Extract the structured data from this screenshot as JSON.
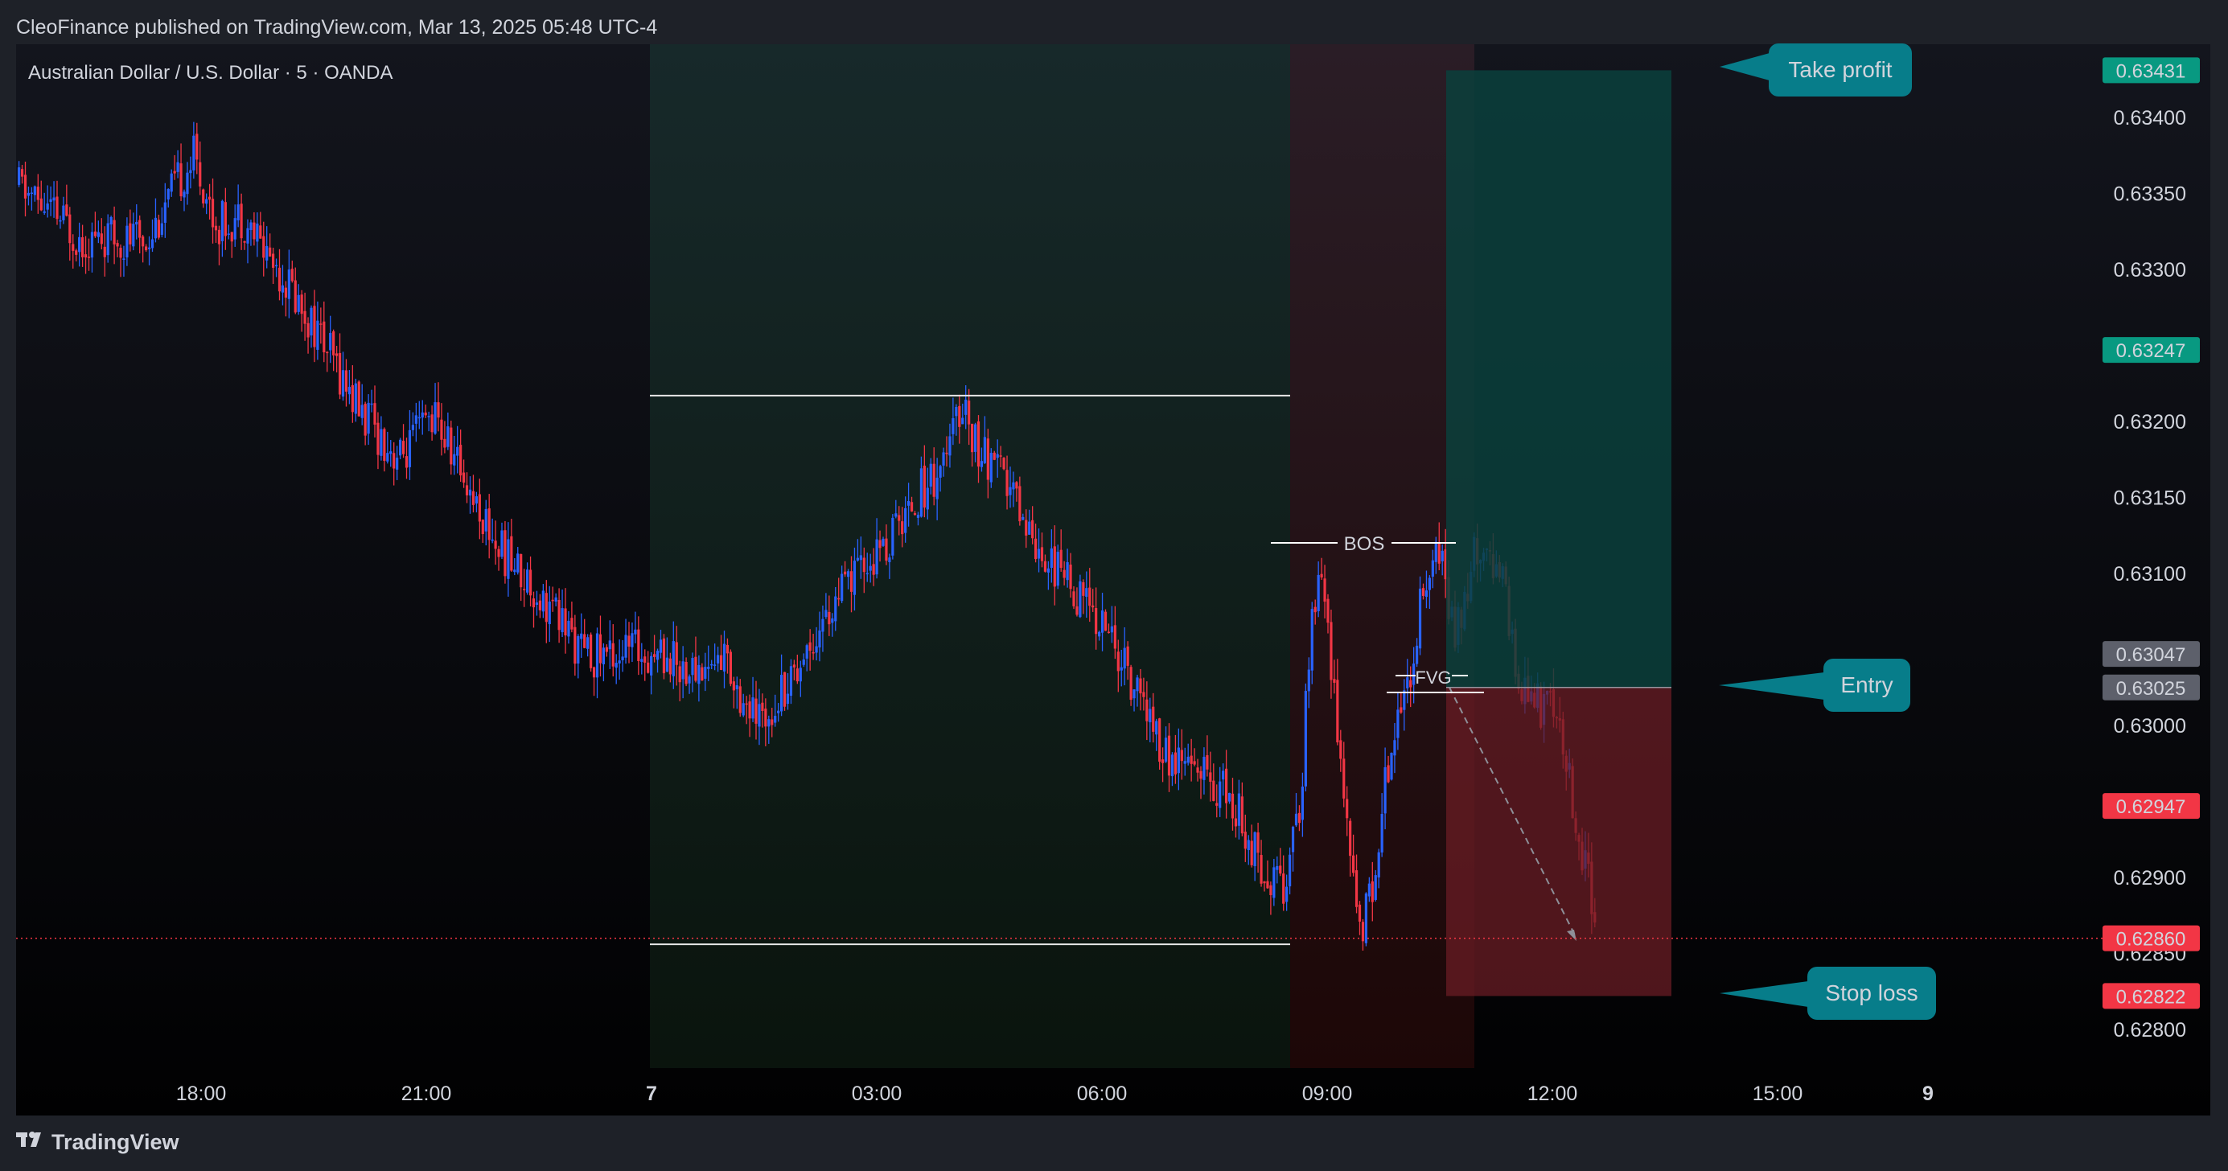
{
  "header": {
    "published_text": "CleoFinance published on TradingView.com, Mar 13, 2025 05:48 UTC-4"
  },
  "footer": {
    "logo_text": "TradingView"
  },
  "colors": {
    "background": "#1e2128",
    "panel": "#0f1118",
    "bull": "#2962ff",
    "bear": "#f23645",
    "profit_zone": "#0a3f3c",
    "loss_zone": "#6a1c24",
    "callout": "#077d8a",
    "label_green": "#089981",
    "label_red": "#f23645",
    "label_gray": "#5d606b"
  },
  "chart_data": {
    "type": "candlestick",
    "symbol_label": "Australian Dollar / U.S. Dollar · 5 · OANDA",
    "y_axis": {
      "ticks": [
        "0.63400",
        "0.63350",
        "0.63300",
        "0.63250",
        "0.63200",
        "0.63150",
        "0.63100",
        "0.63050",
        "0.63000",
        "0.62950",
        "0.62900",
        "0.62850",
        "0.62800"
      ],
      "range": [
        0.6277,
        0.6345
      ]
    },
    "x_axis": {
      "ticks": [
        {
          "label": "18:00",
          "bold": false
        },
        {
          "label": "21:00",
          "bold": false
        },
        {
          "label": "7",
          "bold": true
        },
        {
          "label": "03:00",
          "bold": false
        },
        {
          "label": "06:00",
          "bold": false
        },
        {
          "label": "09:00",
          "bold": false
        },
        {
          "label": "12:00",
          "bold": false
        },
        {
          "label": "15:00",
          "bold": false
        },
        {
          "label": "9",
          "bold": true
        }
      ]
    },
    "price_labels": [
      {
        "text": "0.63431",
        "color": "green"
      },
      {
        "text": "0.63247",
        "color": "green"
      },
      {
        "text": "0.63047",
        "color": "gray"
      },
      {
        "text": "0.63025",
        "color": "gray"
      },
      {
        "text": "0.62947",
        "color": "red"
      },
      {
        "text": "0.62860",
        "color": "red"
      },
      {
        "text": "0.62822",
        "color": "red"
      }
    ],
    "annotations": {
      "take_profit": "Take profit",
      "entry": "Entry",
      "stop_loss": "Stop loss",
      "bos": "BOS",
      "fvg": "FVG"
    },
    "levels": {
      "take_profit": 0.63431,
      "entry": 0.63025,
      "stop_loss": 0.62822,
      "last_price": 0.6286,
      "range_high": 0.63217,
      "range_low": 0.62856
    },
    "path": [
      [
        0,
        0.63355
      ],
      [
        20,
        0.6332
      ],
      [
        40,
        0.6332
      ],
      [
        55,
        0.63375
      ],
      [
        62,
        0.6333
      ],
      [
        70,
        0.63335
      ],
      [
        82,
        0.633
      ],
      [
        95,
        0.63255
      ],
      [
        108,
        0.63205
      ],
      [
        120,
        0.63175
      ],
      [
        130,
        0.63205
      ],
      [
        140,
        0.63165
      ],
      [
        150,
        0.6312
      ],
      [
        160,
        0.63095
      ],
      [
        172,
        0.63065
      ],
      [
        178,
        0.63045
      ],
      [
        184,
        0.63048
      ],
      [
        193,
        0.6305
      ],
      [
        203,
        0.63048
      ],
      [
        212,
        0.63035
      ],
      [
        222,
        0.63045
      ],
      [
        232,
        0.63
      ],
      [
        242,
        0.6303
      ],
      [
        252,
        0.63065
      ],
      [
        262,
        0.63095
      ],
      [
        272,
        0.63115
      ],
      [
        282,
        0.6315
      ],
      [
        292,
        0.63175
      ],
      [
        297,
        0.63215
      ],
      [
        302,
        0.6318
      ],
      [
        312,
        0.63155
      ],
      [
        322,
        0.63115
      ],
      [
        332,
        0.6309
      ],
      [
        342,
        0.63065
      ],
      [
        352,
        0.6302
      ],
      [
        362,
        0.62975
      ],
      [
        372,
        0.6297
      ],
      [
        382,
        0.6295
      ],
      [
        392,
        0.62905
      ],
      [
        398,
        0.62895
      ],
      [
        403,
        0.62935
      ],
      [
        406,
        0.6305
      ],
      [
        410,
        0.631
      ],
      [
        414,
        0.63025
      ],
      [
        418,
        0.6293
      ],
      [
        422,
        0.62865
      ],
      [
        427,
        0.62905
      ],
      [
        432,
        0.62995
      ],
      [
        437,
        0.63025
      ],
      [
        442,
        0.63095
      ],
      [
        447,
        0.63115
      ],
      [
        452,
        0.63055
      ],
      [
        457,
        0.63105
      ],
      [
        462,
        0.63125
      ],
      [
        467,
        0.6309
      ],
      [
        472,
        0.6303
      ],
      [
        477,
        0.63015
      ],
      [
        482,
        0.6301
      ],
      [
        487,
        0.62975
      ],
      [
        490,
        0.6294
      ],
      [
        493,
        0.62905
      ],
      [
        496,
        0.62875
      ]
    ]
  }
}
